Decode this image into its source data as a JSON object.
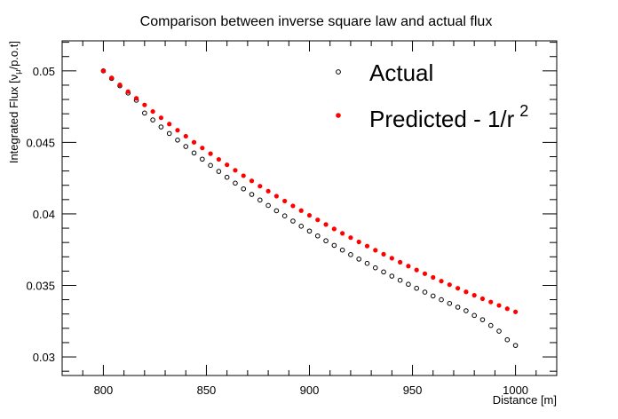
{
  "chart_data": {
    "type": "scatter",
    "title": "Comparison between inverse square law and actual flux",
    "xlabel": "Distance [m]",
    "ylabel": "Integrated Flux [ν",
    "ylabel_sub": "μ",
    "ylabel_tail": "/p.o.t]",
    "xlim": [
      780,
      1020
    ],
    "ylim": [
      0.0287,
      0.0521
    ],
    "x_ticks": [
      800,
      850,
      900,
      950,
      1000
    ],
    "x_tick_labels": [
      "800",
      "850",
      "900",
      "950",
      "1000"
    ],
    "y_ticks": [
      0.03,
      0.035,
      0.04,
      0.045,
      0.05
    ],
    "y_tick_labels": [
      "0.03",
      "0.035",
      "0.04",
      "0.045",
      "0.05"
    ],
    "grid": false,
    "legend_position": "top-right",
    "x": [
      800,
      804,
      808,
      812,
      816,
      820,
      824,
      828,
      832,
      836,
      840,
      844,
      848,
      852,
      856,
      860,
      864,
      868,
      872,
      876,
      880,
      884,
      888,
      892,
      896,
      900,
      904,
      908,
      912,
      916,
      920,
      924,
      928,
      932,
      936,
      940,
      944,
      948,
      952,
      956,
      960,
      964,
      968,
      972,
      976,
      980,
      984,
      988,
      992,
      996,
      1000
    ],
    "series": [
      {
        "name": "Actual",
        "marker": "open-circle",
        "color": "#000000",
        "values": [
          0.05,
          0.04947,
          0.04896,
          0.04845,
          0.04795,
          0.04705,
          0.04657,
          0.04608,
          0.04562,
          0.04516,
          0.04471,
          0.04426,
          0.04383,
          0.04339,
          0.04297,
          0.04256,
          0.04215,
          0.04175,
          0.04136,
          0.04097,
          0.04059,
          0.04022,
          0.03986,
          0.0395,
          0.03914,
          0.0388,
          0.03846,
          0.03812,
          0.0378,
          0.03747,
          0.03715,
          0.03684,
          0.03654,
          0.03623,
          0.03594,
          0.03565,
          0.03536,
          0.03508,
          0.0348,
          0.03453,
          0.03426,
          0.034,
          0.03374,
          0.03348,
          0.03323,
          0.0329,
          0.0326,
          0.0322,
          0.0318,
          0.0312,
          0.0308
        ]
      },
      {
        "name": "Predicted - 1/r",
        "name_sup": "2",
        "marker": "filled-circle",
        "color": "#ff0000",
        "values": [
          0.05,
          0.04951,
          0.04902,
          0.04855,
          0.04808,
          0.04762,
          0.04716,
          0.04672,
          0.04628,
          0.04585,
          0.04543,
          0.04501,
          0.04461,
          0.04421,
          0.04381,
          0.04343,
          0.04305,
          0.04267,
          0.04231,
          0.04194,
          0.04159,
          0.04124,
          0.0409,
          0.04056,
          0.04023,
          0.0399,
          0.03958,
          0.03926,
          0.03895,
          0.03864,
          0.03834,
          0.03804,
          0.03775,
          0.03746,
          0.03718,
          0.0369,
          0.03662,
          0.03635,
          0.03608,
          0.03582,
          0.03556,
          0.0353,
          0.03505,
          0.0348,
          0.03455,
          0.03431,
          0.03407,
          0.03384,
          0.0336,
          0.03337,
          0.03315
        ]
      }
    ]
  }
}
